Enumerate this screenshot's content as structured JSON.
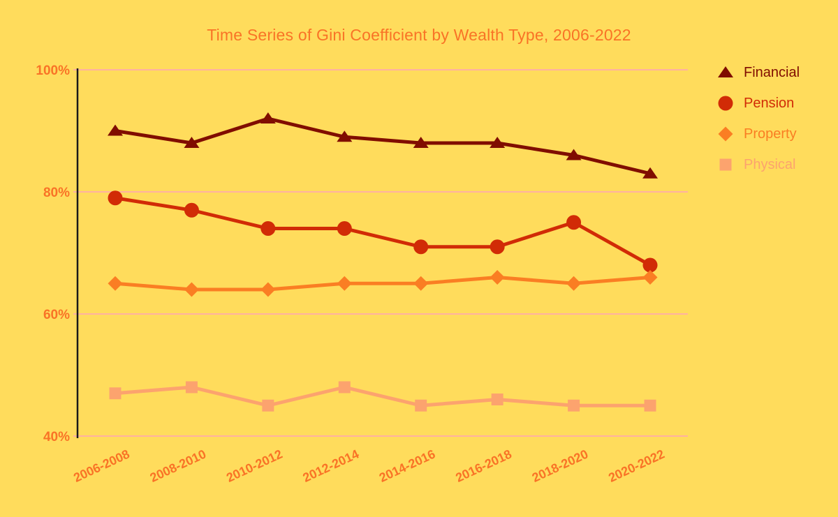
{
  "title": "Time Series of Gini Coefficient by Wealth Type, 2006-2022",
  "colors": {
    "background": "#FFDC5C",
    "title": "#F97326",
    "tick_label": "#F97326",
    "gridline": "#FFB1A1",
    "axis_line": "#1A1A1A"
  },
  "chart_data": {
    "type": "line",
    "title": "Time Series of Gini Coefficient by Wealth Type, 2006-2022",
    "xlabel": "",
    "ylabel": "",
    "categories": [
      "2006-2008",
      "2008-2010",
      "2010-2012",
      "2012-2014",
      "2014-2016",
      "2016-2018",
      "2018-2020",
      "2020-2022"
    ],
    "series": [
      {
        "name": "Financial",
        "marker": "triangle",
        "color": "#800D00",
        "values": [
          90,
          88,
          92,
          89,
          88,
          88,
          86,
          83
        ]
      },
      {
        "name": "Pension",
        "marker": "circle",
        "color": "#D12B06",
        "values": [
          79,
          77,
          74,
          74,
          71,
          71,
          75,
          68
        ]
      },
      {
        "name": "Property",
        "marker": "diamond",
        "color": "#FA7E23",
        "values": [
          65,
          64,
          64,
          65,
          65,
          66,
          65,
          66
        ]
      },
      {
        "name": "Physical",
        "marker": "square",
        "color": "#FCA36E",
        "values": [
          47,
          48,
          45,
          48,
          45,
          46,
          45,
          45
        ]
      }
    ],
    "ylim": [
      40,
      100
    ],
    "yticks": [
      100,
      80,
      60,
      40
    ],
    "ytick_labels": [
      "100%",
      "80%",
      "60%",
      "40%"
    ],
    "grid": "horizontal",
    "legend_position": "right",
    "unit": "%"
  }
}
